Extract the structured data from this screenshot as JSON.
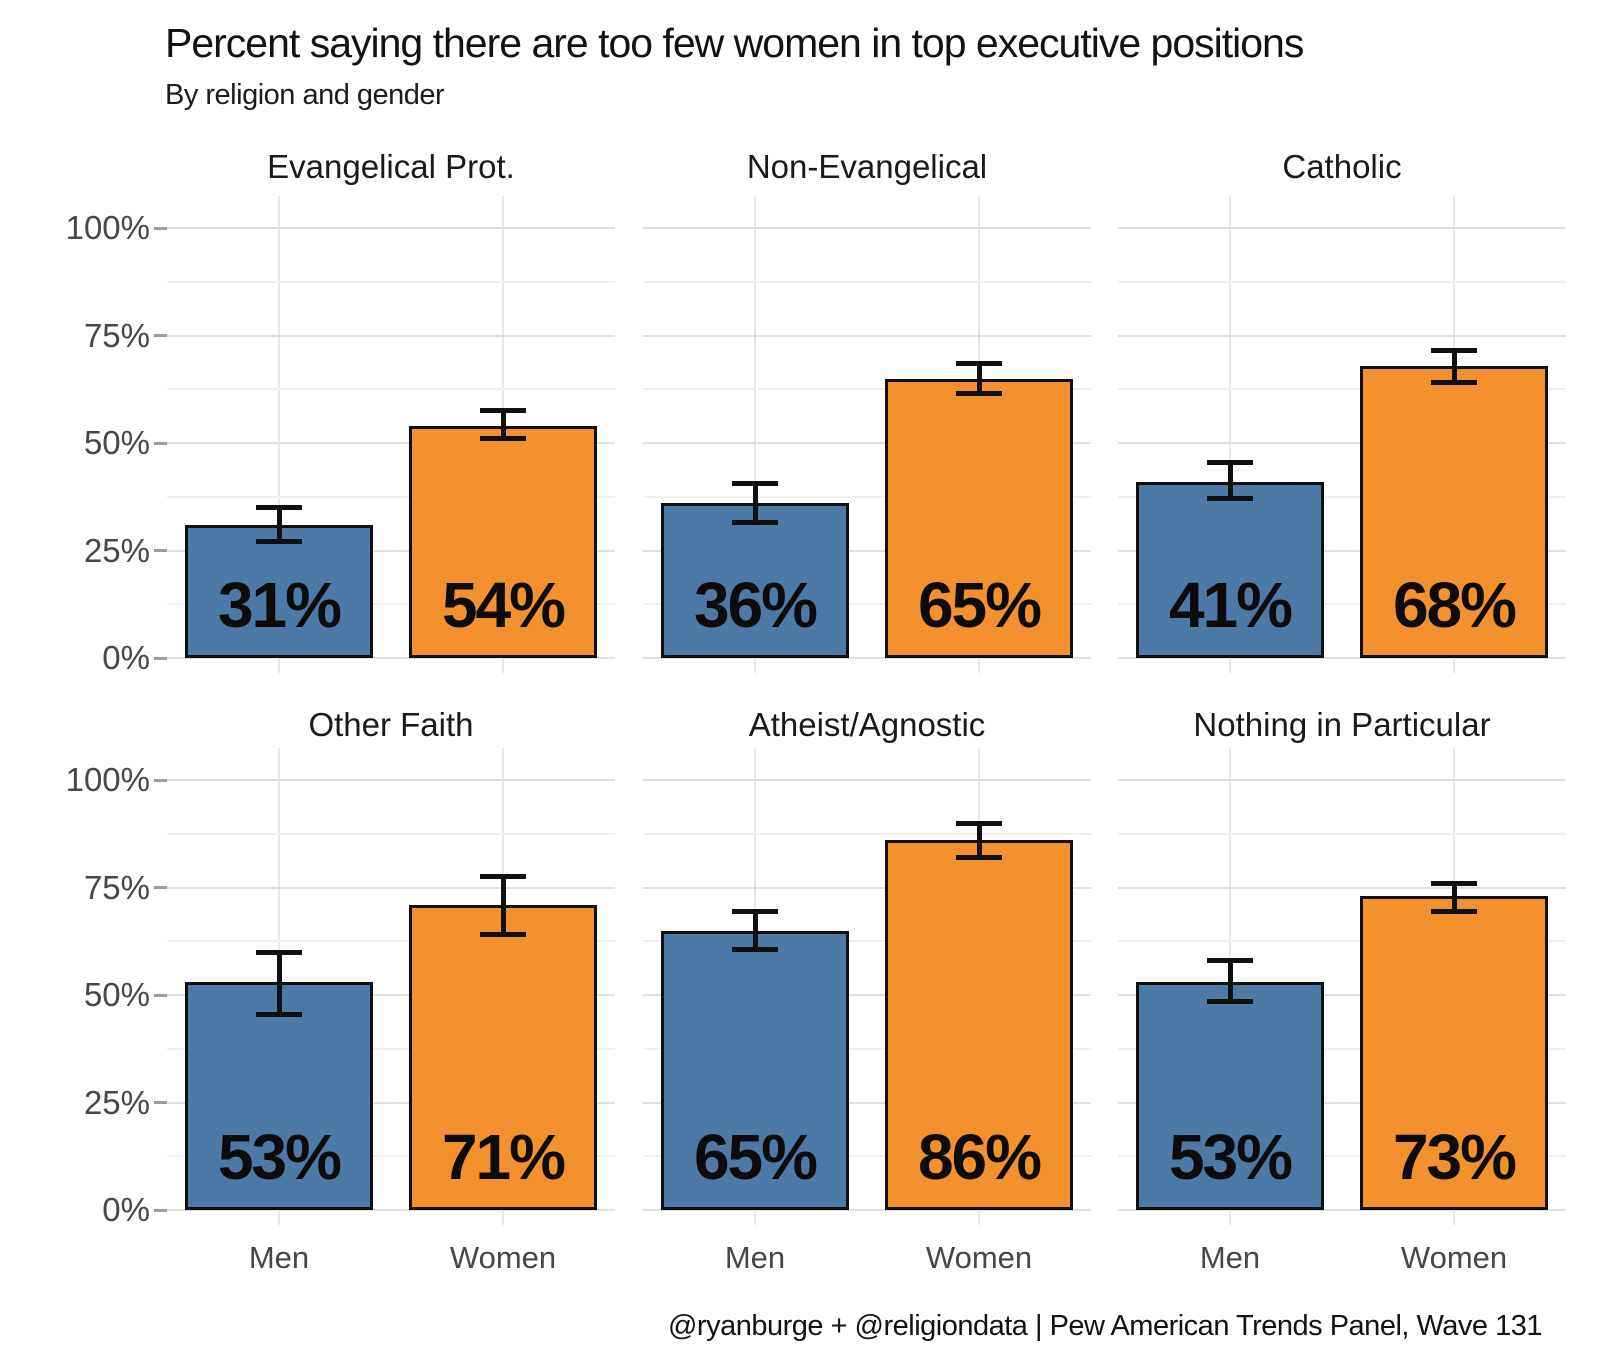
{
  "title": "Percent saying there are too few women in top executive positions",
  "subtitle": "By religion and gender",
  "caption": "@ryanburge + @religiondata | Pew American Trends Panel, Wave 131",
  "colors": {
    "men_bar": "#4D79A7",
    "women_bar": "#F2912D",
    "bar_border": "#101010",
    "error_bar": "#101010",
    "grid_major": "#e0e0e0",
    "grid_minor": "#f0f0f0",
    "axis_text": "#474747",
    "title_text": "#121212"
  },
  "chart_data": {
    "type": "bar",
    "layout": "facet grid, 2 rows x 3 columns, shared axes",
    "categories": [
      "Men",
      "Women"
    ],
    "unit": "%",
    "ylim": [
      0,
      100
    ],
    "ytick_values": [
      0,
      25,
      50,
      75,
      100
    ],
    "ytick_labels": [
      "0%",
      "25%",
      "50%",
      "75%",
      "100%"
    ],
    "minor_grid_step": 12.5,
    "grid": true,
    "legend": "none",
    "facets": [
      {
        "title": "Evangelical Prot.",
        "values": [
          31,
          54
        ],
        "labels": [
          "31%",
          "54%"
        ],
        "error_low": [
          27.0,
          51.0
        ],
        "error_high": [
          35.0,
          57.5
        ]
      },
      {
        "title": "Non-Evangelical",
        "values": [
          36,
          65
        ],
        "labels": [
          "36%",
          "65%"
        ],
        "error_low": [
          31.5,
          61.5
        ],
        "error_high": [
          40.5,
          68.5
        ]
      },
      {
        "title": "Catholic",
        "values": [
          41,
          68
        ],
        "labels": [
          "41%",
          "68%"
        ],
        "error_low": [
          37.0,
          64.0
        ],
        "error_high": [
          45.5,
          71.5
        ]
      },
      {
        "title": "Other Faith",
        "values": [
          53,
          71
        ],
        "labels": [
          "53%",
          "71%"
        ],
        "error_low": [
          45.5,
          64.0
        ],
        "error_high": [
          60.0,
          77.5
        ]
      },
      {
        "title": "Atheist/Agnostic",
        "values": [
          65,
          86
        ],
        "labels": [
          "65%",
          "86%"
        ],
        "error_low": [
          60.5,
          82.0
        ],
        "error_high": [
          69.5,
          90.0
        ]
      },
      {
        "title": "Nothing in Particular",
        "values": [
          53,
          73
        ],
        "labels": [
          "53%",
          "73%"
        ],
        "error_low": [
          48.5,
          69.5
        ],
        "error_high": [
          58.0,
          76.0
        ]
      }
    ]
  }
}
